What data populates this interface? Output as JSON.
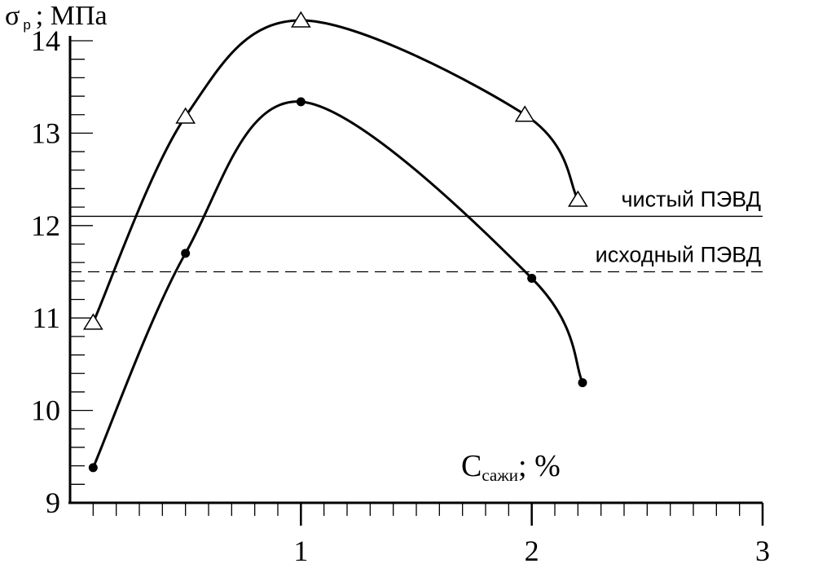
{
  "chart_data": {
    "type": "line",
    "ylabel_symbol": "σ",
    "ylabel_subscript": "р",
    "ylabel_unit": "; МПа",
    "xlabel_symbol": "С",
    "xlabel_subscript": "сажи",
    "xlabel_unit": "; %",
    "xlim": [
      0,
      3
    ],
    "ylim": [
      9,
      14
    ],
    "x_tick_labels": [
      "1",
      "2",
      "3"
    ],
    "y_tick_labels": [
      "9",
      "10",
      "11",
      "12",
      "13",
      "14"
    ],
    "series": [
      {
        "marker": "triangle",
        "x": [
          0.1,
          0.5,
          1.0,
          1.97,
          2.2
        ],
        "y": [
          10.95,
          13.18,
          14.22,
          13.2,
          12.28
        ]
      },
      {
        "marker": "dot",
        "x": [
          0.1,
          0.5,
          1.0,
          2.0,
          2.22
        ],
        "y": [
          9.38,
          11.7,
          13.34,
          11.43,
          10.3
        ]
      }
    ],
    "reference_lines": [
      {
        "label": "чистый ПЭВД",
        "y": 12.1,
        "style": "solid"
      },
      {
        "label": "исходный ПЭВД",
        "y": 11.5,
        "style": "dashed"
      }
    ],
    "grid": false
  }
}
